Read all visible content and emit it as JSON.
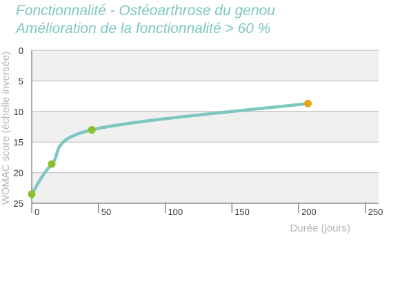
{
  "chart_data": {
    "type": "line",
    "title": "Fonctionnalité - Ostéoarthrose du genou",
    "subtitle": "Amélioration de la fonctionnalité > 60 %",
    "xlabel": "Durée (jours)",
    "ylabel": "WOMAC score (échelle inversée)",
    "xlim": [
      0,
      260
    ],
    "ylim": [
      0,
      25
    ],
    "y_inverted": true,
    "x_ticks": [
      0,
      50,
      100,
      150,
      200,
      250
    ],
    "y_ticks": [
      0,
      5,
      10,
      15,
      20,
      25
    ],
    "grid": "horizontal",
    "line_color": "#7ec7c0",
    "band_color": "#f0f0f0",
    "series": [
      {
        "points": [
          {
            "x": 0,
            "y": 23.5,
            "color": "#8dbf2a"
          },
          {
            "x": 15,
            "y": 18.6,
            "color": "#8dbf2a"
          },
          {
            "x": 45,
            "y": 13.0,
            "color": "#8dbf2a"
          },
          {
            "x": 207,
            "y": 8.7,
            "color": "#e8a317"
          }
        ]
      }
    ]
  }
}
